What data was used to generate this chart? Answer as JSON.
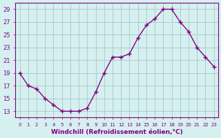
{
  "x": [
    0,
    1,
    2,
    3,
    4,
    5,
    6,
    7,
    8,
    9,
    10,
    11,
    12,
    13,
    14,
    15,
    16,
    17,
    18,
    19,
    20,
    21,
    22,
    23
  ],
  "y": [
    19,
    17,
    16.5,
    15,
    14,
    13,
    13,
    13,
    13.5,
    16,
    19,
    21.5,
    21.5,
    22,
    24.5,
    26.5,
    27.5,
    29,
    29,
    27,
    25.5,
    23,
    21.5,
    20
  ],
  "line_color": "#800080",
  "marker": "+",
  "marker_color": "#800080",
  "bg_color": "#d6f0f0",
  "grid_color": "#b0d0d0",
  "xlabel": "Windchill (Refroidissement éolien,°C)",
  "xlabel_color": "#800080",
  "tick_color": "#800080",
  "ylim": [
    12,
    30
  ],
  "yticks": [
    13,
    15,
    17,
    19,
    21,
    23,
    25,
    27,
    29
  ],
  "xlim": [
    -0.5,
    23.5
  ],
  "xticks": [
    0,
    1,
    2,
    3,
    4,
    5,
    6,
    7,
    8,
    9,
    10,
    11,
    12,
    13,
    14,
    15,
    16,
    17,
    18,
    19,
    20,
    21,
    22,
    23
  ]
}
